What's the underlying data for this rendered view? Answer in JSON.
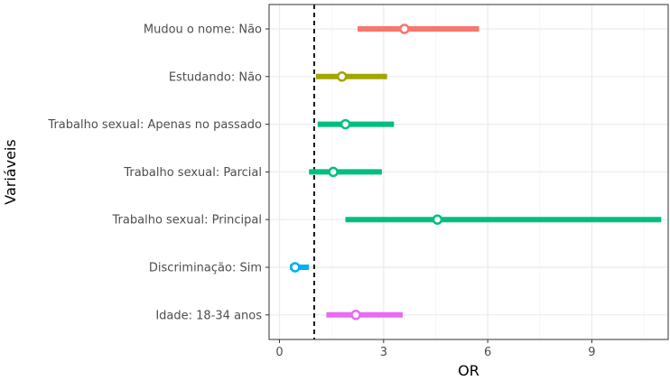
{
  "chart_data": {
    "type": "forest",
    "xlabel": "OR",
    "ylabel": "Variáveis",
    "xlim": [
      -0.3,
      11.2
    ],
    "xticks": [
      0,
      3,
      6,
      9
    ],
    "reference_line": 1,
    "grid": true,
    "rows": [
      {
        "label": "Mudou o nome: Não",
        "or": 3.6,
        "low": 2.25,
        "high": 5.75,
        "color": "#F8766D"
      },
      {
        "label": "Estudando: Não",
        "or": 1.8,
        "low": 1.05,
        "high": 3.1,
        "color": "#A3A500"
      },
      {
        "label": "Trabalho sexual: Apenas no passado",
        "or": 1.9,
        "low": 1.1,
        "high": 3.3,
        "color": "#00BF7D"
      },
      {
        "label": "Trabalho sexual: Parcial",
        "or": 1.55,
        "low": 0.85,
        "high": 2.95,
        "color": "#00BF7D"
      },
      {
        "label": "Trabalho sexual: Principal",
        "or": 4.55,
        "low": 1.9,
        "high": 11.0,
        "color": "#00BF7D"
      },
      {
        "label": "Discriminação: Sim",
        "or": 0.45,
        "low": 0.3,
        "high": 0.85,
        "color": "#00B0F6"
      },
      {
        "label": "Idade: 18-34 anos",
        "or": 2.2,
        "low": 1.35,
        "high": 3.55,
        "color": "#E76BF3"
      }
    ]
  }
}
